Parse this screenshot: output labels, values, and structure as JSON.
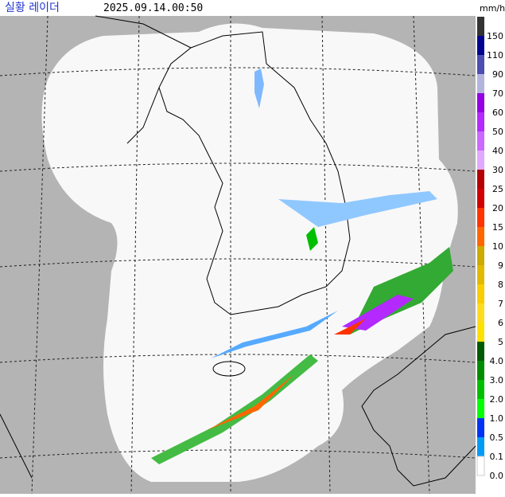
{
  "header": {
    "title": "실황 레이더",
    "timestamp": "2025.09.14.00:50",
    "unit": "mm/h"
  },
  "legend": {
    "items": [
      {
        "label": "150",
        "color": "#333333"
      },
      {
        "label": "110",
        "color": "#000390"
      },
      {
        "label": "90",
        "color": "#4c4eb1"
      },
      {
        "label": "70",
        "color": "#b3b4de"
      },
      {
        "label": "60",
        "color": "#9300e4"
      },
      {
        "label": "50",
        "color": "#b329ff"
      },
      {
        "label": "40",
        "color": "#c969ff"
      },
      {
        "label": "30",
        "color": "#e0a9ff"
      },
      {
        "label": "25",
        "color": "#b40000"
      },
      {
        "label": "20",
        "color": "#d20000"
      },
      {
        "label": "15",
        "color": "#ff3300"
      },
      {
        "label": "10",
        "color": "#ff6600"
      },
      {
        "label": "9",
        "color": "#ccaa00"
      },
      {
        "label": "8",
        "color": "#e0b900"
      },
      {
        "label": "7",
        "color": "#f9cd00"
      },
      {
        "label": "6",
        "color": "#ffdc1f"
      },
      {
        "label": "5",
        "color": "#ffe100"
      },
      {
        "label": "4.0",
        "color": "#005a00"
      },
      {
        "label": "3.0",
        "color": "#008c00"
      },
      {
        "label": "2.0",
        "color": "#00be00"
      },
      {
        "label": "1.0",
        "color": "#00ff00"
      },
      {
        "label": "0.5",
        "color": "#0033f5"
      },
      {
        "label": "0.1",
        "color": "#009bf5"
      },
      {
        "label": "0.0",
        "color": "#ffffff"
      }
    ]
  }
}
